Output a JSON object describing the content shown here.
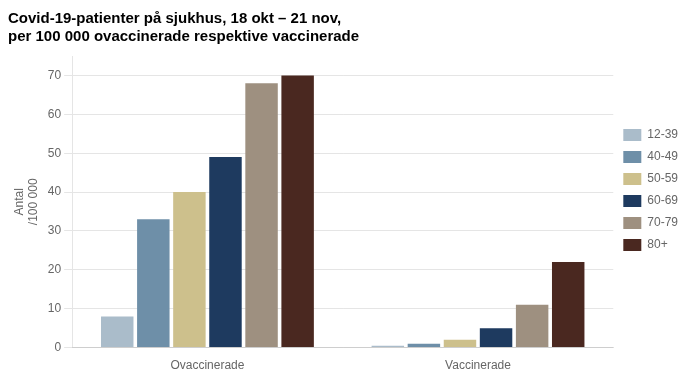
{
  "chart_data": {
    "type": "bar",
    "title": [
      "Covid-19-patienter på sjukhus, 18 okt – 21 nov,",
      "per 100 000 ovaccinerade respektive vaccinerade"
    ],
    "y_label": [
      "Antal",
      "/100 000"
    ],
    "categories": [
      "Ovaccinerade",
      "Vaccinerade"
    ],
    "series": [
      {
        "name": "12-39",
        "color": "#aabcca",
        "values": [
          8,
          0.5
        ]
      },
      {
        "name": "40-49",
        "color": "#6e8fa8",
        "values": [
          33,
          1
        ]
      },
      {
        "name": "50-59",
        "color": "#cdc08c",
        "values": [
          40,
          2
        ]
      },
      {
        "name": "60-69",
        "color": "#1e3a5f",
        "values": [
          49,
          5
        ]
      },
      {
        "name": "70-79",
        "color": "#9e9080",
        "values": [
          68,
          11
        ]
      },
      {
        "name": "80+",
        "color": "#4a2820",
        "values": [
          70,
          22
        ]
      }
    ],
    "ylim": [
      0,
      75
    ],
    "yticks": [
      0,
      10,
      20,
      30,
      40,
      50,
      60,
      70
    ],
    "grid": true,
    "legend": "right"
  }
}
